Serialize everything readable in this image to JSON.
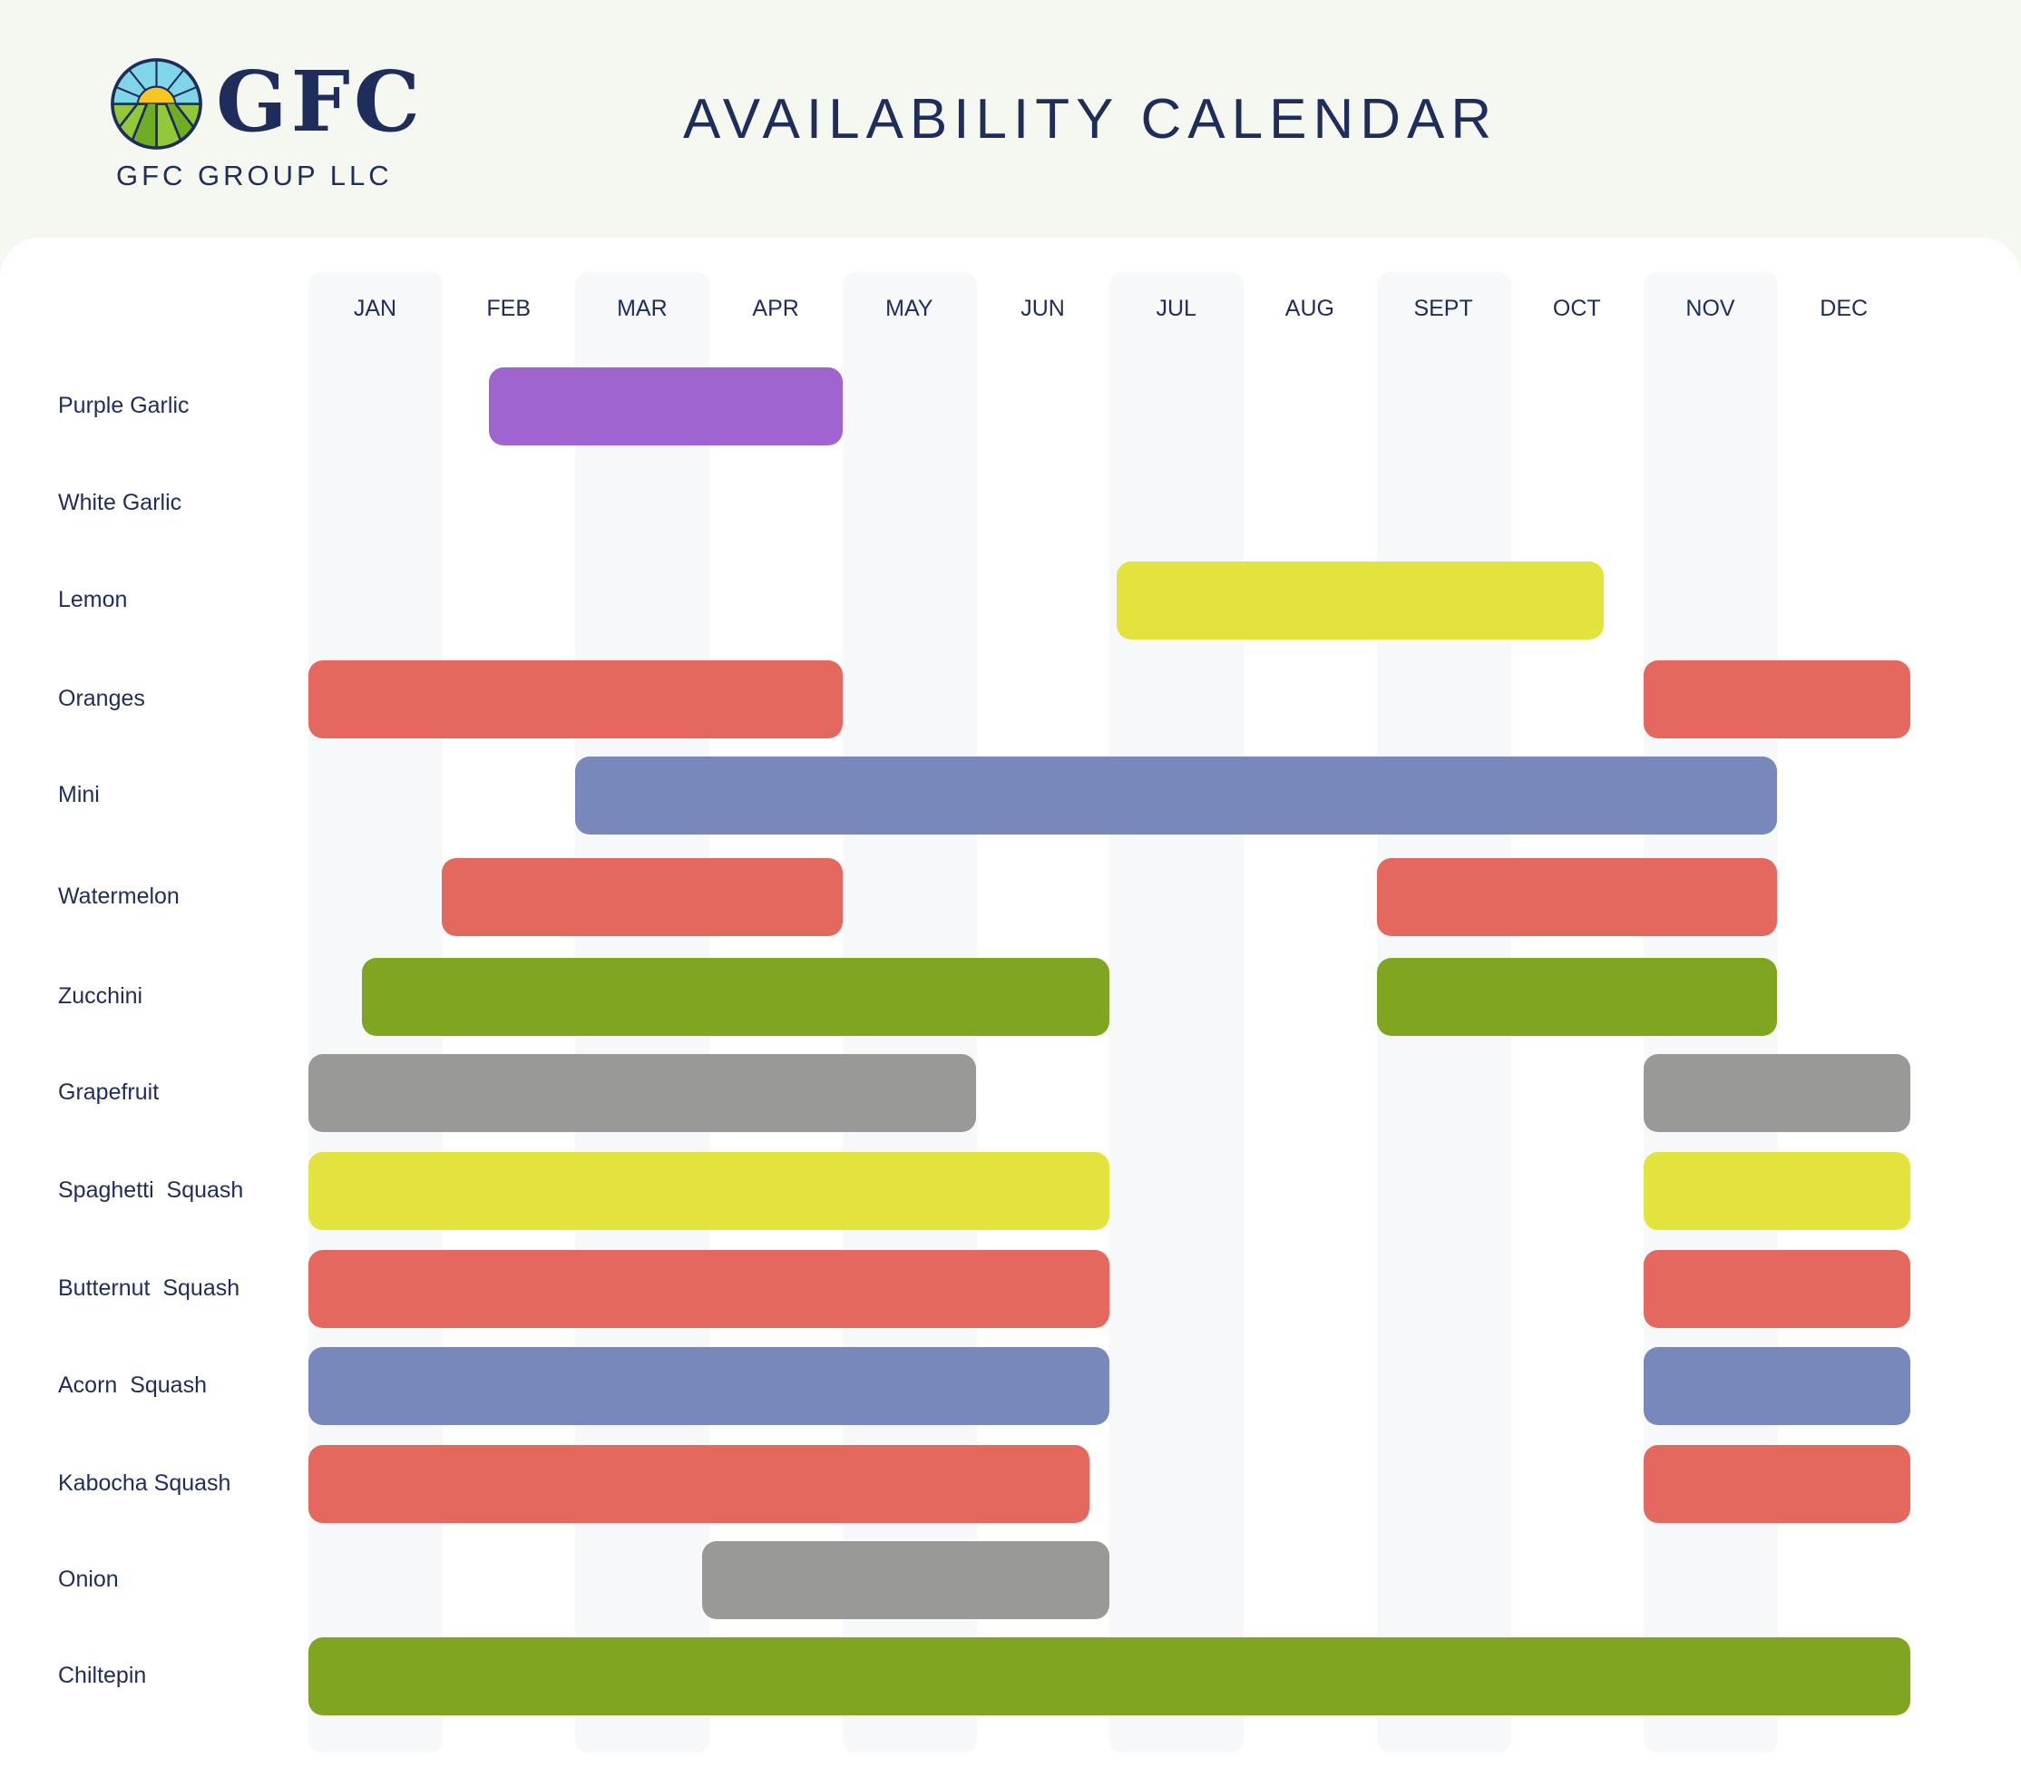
{
  "header": {
    "brand": "GFC",
    "company": "GFC GROUP LLC",
    "title": "AVAILABILITY CALENDAR",
    "logo": "sun-over-field-logo"
  },
  "chart_data": {
    "type": "gantt",
    "title": "AVAILABILITY CALENDAR",
    "months": [
      "JAN",
      "FEB",
      "MAR",
      "APR",
      "MAY",
      "JUN",
      "JUL",
      "AUG",
      "SEPT",
      "OCT",
      "NOV",
      "DEC"
    ],
    "colors": {
      "purple": "#a064d0",
      "yellow": "#e2e33c",
      "red": "#e4685d",
      "blue": "#7888ba",
      "green": "#80a621",
      "gray": "#999997"
    },
    "rows": [
      {
        "label": "Purple Garlic",
        "bars": [
          {
            "start": 1.35,
            "end": 4.0,
            "color": "purple"
          }
        ]
      },
      {
        "label": "White Garlic",
        "bars": []
      },
      {
        "label": "Lemon",
        "bars": [
          {
            "start": 6.05,
            "end": 9.7,
            "color": "yellow"
          }
        ]
      },
      {
        "label": "Oranges",
        "bars": [
          {
            "start": 0,
            "end": 4.0,
            "color": "red"
          },
          {
            "start": 10.0,
            "end": 12.0,
            "color": "red"
          }
        ]
      },
      {
        "label": "Mini",
        "bars": [
          {
            "start": 2.0,
            "end": 11.0,
            "color": "blue"
          }
        ]
      },
      {
        "label": "Watermelon",
        "bars": [
          {
            "start": 1.0,
            "end": 4.0,
            "color": "red"
          },
          {
            "start": 8.0,
            "end": 11.0,
            "color": "red"
          }
        ]
      },
      {
        "label": "Zucchini",
        "bars": [
          {
            "start": 0.4,
            "end": 6.0,
            "color": "green"
          },
          {
            "start": 8.0,
            "end": 11.0,
            "color": "green"
          }
        ]
      },
      {
        "label": "Grapefruit",
        "bars": [
          {
            "start": 0,
            "end": 5.0,
            "color": "gray"
          },
          {
            "start": 10.0,
            "end": 12.0,
            "color": "gray"
          }
        ]
      },
      {
        "label": "Spaghetti  Squash",
        "bars": [
          {
            "start": 0,
            "end": 6.0,
            "color": "yellow"
          },
          {
            "start": 10.0,
            "end": 12.0,
            "color": "yellow"
          }
        ]
      },
      {
        "label": "Butternut  Squash",
        "bars": [
          {
            "start": 0,
            "end": 6.0,
            "color": "red"
          },
          {
            "start": 10.0,
            "end": 12.0,
            "color": "red"
          }
        ]
      },
      {
        "label": "Acorn  Squash",
        "bars": [
          {
            "start": 0,
            "end": 6.0,
            "color": "blue"
          },
          {
            "start": 10.0,
            "end": 12.0,
            "color": "blue"
          }
        ]
      },
      {
        "label": "Kabocha Squash",
        "bars": [
          {
            "start": 0,
            "end": 5.85,
            "color": "red"
          },
          {
            "start": 10.0,
            "end": 12.0,
            "color": "red"
          }
        ]
      },
      {
        "label": "Onion",
        "bars": [
          {
            "start": 2.95,
            "end": 6.0,
            "color": "gray"
          }
        ]
      },
      {
        "label": "Chiltepin",
        "bars": [
          {
            "start": 0,
            "end": 12.0,
            "color": "green"
          }
        ]
      }
    ]
  }
}
